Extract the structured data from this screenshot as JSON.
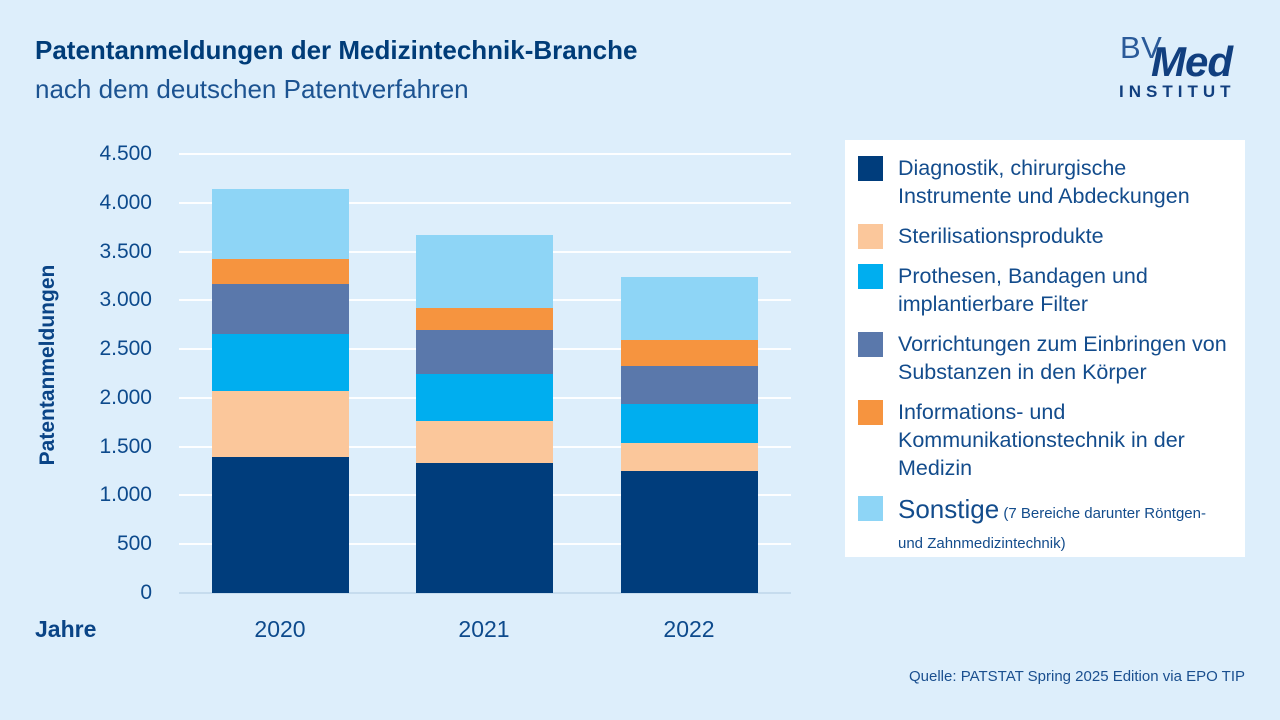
{
  "header": {
    "title_bold": "Patentanmeldungen der Medizintechnik-Branche",
    "title_regular": "nach dem deutschen Patentverfahren"
  },
  "logo": {
    "bv": "BV",
    "med": "Med",
    "institut": "INSTITUT"
  },
  "colors": {
    "background": "#ddeefb",
    "legend_box": "#ffffff",
    "text_navy": "#0d4a8c",
    "title_navy": "#003c78",
    "gridline": "#ffffff",
    "axis_baseline": "#c6dcee"
  },
  "chart_data": {
    "type": "bar",
    "stacked": true,
    "title": "Patentanmeldungen der Medizintechnik-Branche nach dem deutschen Patentverfahren",
    "categories": [
      "2020",
      "2021",
      "2022"
    ],
    "series": [
      {
        "name": "Diagnostik, chirurgische Instrumente und Abdeckungen",
        "color": "#003d7c",
        "values": [
          1390,
          1330,
          1250
        ]
      },
      {
        "name": "Sterilisationsprodukte",
        "color": "#fbc79b",
        "values": [
          680,
          435,
          285
        ]
      },
      {
        "name": "Prothesen, Bandagen und implantierbare Filter",
        "color": "#00aeef",
        "values": [
          590,
          475,
          400
        ]
      },
      {
        "name": "Vorrichtungen zum Einbringen von Substanzen in den Körper",
        "color": "#5a78ab",
        "values": [
          510,
          455,
          390
        ]
      },
      {
        "name": "Informations- und Kommunikationstechnik in der Medizin",
        "color": "#f6943f",
        "values": [
          250,
          225,
          270
        ]
      },
      {
        "name": "Sonstige (7 Bereiche darunter Röntgen- und Zahnmedizintechnik)",
        "color": "#8ed5f6",
        "values": [
          725,
          750,
          640
        ]
      }
    ],
    "totals": [
      4145,
      3670,
      3235
    ],
    "xlabel": "Jahre",
    "ylabel": "Patentanmeldungen",
    "ylim": [
      0,
      4500
    ],
    "ytick_step": 500,
    "ytick_labels": [
      "0",
      "500",
      "1.000",
      "1.500",
      "2.000",
      "2.500",
      "3.000",
      "3.500",
      "4.000",
      "4.500"
    ],
    "grid": true,
    "legend_position": "right"
  },
  "legend": {
    "items": [
      {
        "label": "Diagnostik, chirurgische Instrumente und Abdeckungen",
        "note": "",
        "color": "#003d7c"
      },
      {
        "label": "Sterilisationsprodukte",
        "note": "",
        "color": "#fbc79b"
      },
      {
        "label": "Prothesen, Bandagen und implantierbare Filter",
        "note": "",
        "color": "#00aeef"
      },
      {
        "label": "Vorrichtungen zum Einbringen von Substanzen in den Körper",
        "note": "",
        "color": "#5a78ab"
      },
      {
        "label": "Informations- und Kommunikationstechnik in der Medizin",
        "note": "",
        "color": "#f6943f"
      },
      {
        "label": "Sonstige",
        "note": "(7 Bereiche darunter Röntgen- und Zahnmedizintechnik)",
        "color": "#8ed5f6"
      }
    ]
  },
  "footer": {
    "source": "Quelle: PATSTAT Spring 2025 Edition via EPO TIP"
  }
}
